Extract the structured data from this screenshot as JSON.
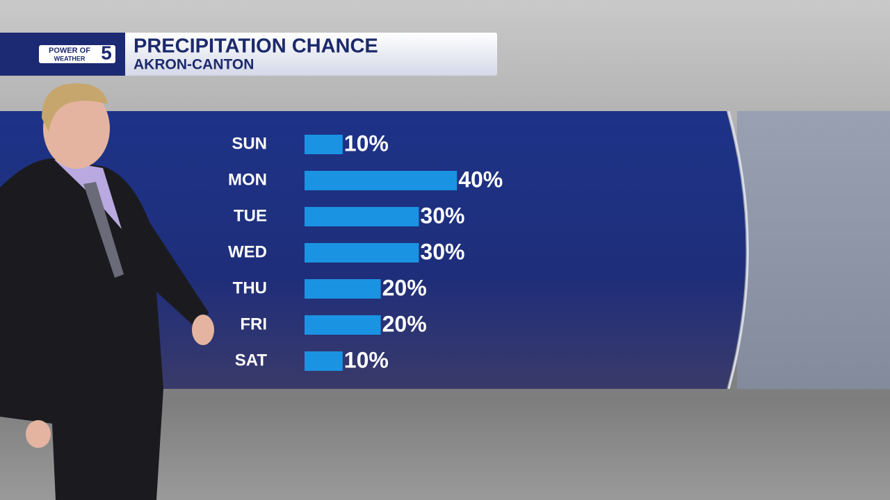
{
  "logo": {
    "top": "POWER OF",
    "number": "5",
    "bottom": "WEATHER"
  },
  "chart_data": {
    "type": "bar",
    "orientation": "horizontal",
    "title": "PRECIPITATION CHANCE",
    "subtitle": "AKRON-CANTON",
    "categories": [
      "SUN",
      "MON",
      "TUE",
      "WED",
      "THU",
      "FRI",
      "SAT"
    ],
    "values": [
      10,
      40,
      30,
      30,
      20,
      20,
      10
    ],
    "value_labels": [
      "10%",
      "40%",
      "30%",
      "30%",
      "20%",
      "20%",
      "10%"
    ],
    "color": "#1b93e3"
  }
}
